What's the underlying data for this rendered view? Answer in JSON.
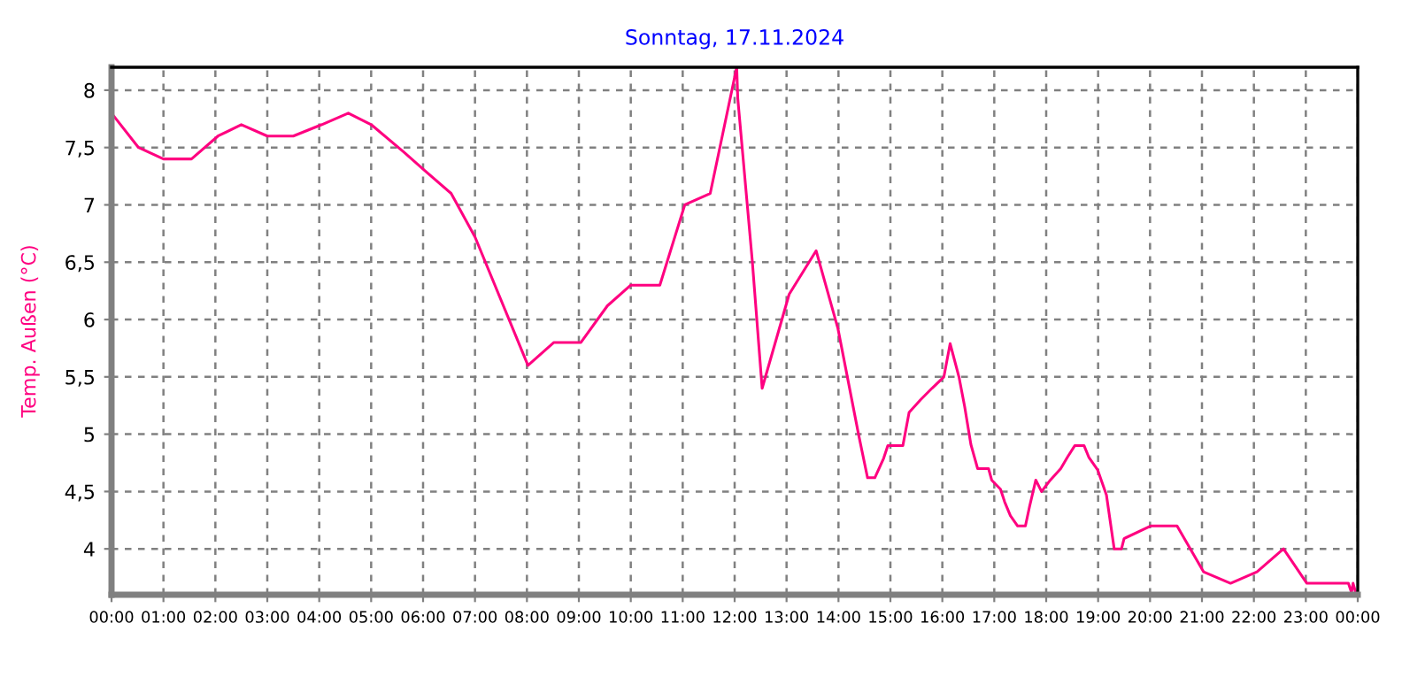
{
  "chart_data": {
    "type": "line",
    "title": "Sonntag, 17.11.2024",
    "ylabel": "Temp. Außen (°C)",
    "x": [
      0,
      0.52,
      1.0,
      1.54,
      2.05,
      2.5,
      3.0,
      3.5,
      4.05,
      4.56,
      5.0,
      5.63,
      6.03,
      6.54,
      7.0,
      8.02,
      8.52,
      9.04,
      9.55,
      10.0,
      10.56,
      11.04,
      11.53,
      12.04,
      12.06,
      12.34,
      12.53,
      13.05,
      13.57,
      13.99,
      14.39,
      14.56,
      14.7,
      14.87,
      14.95,
      15.24,
      15.36,
      15.58,
      15.8,
      16.03,
      16.15,
      16.32,
      16.43,
      16.55,
      16.68,
      16.89,
      16.95,
      17.12,
      17.2,
      17.31,
      17.45,
      17.6,
      17.68,
      17.8,
      17.91,
      18.08,
      18.28,
      18.41,
      18.55,
      18.73,
      18.82,
      18.99,
      19.16,
      19.31,
      19.45,
      19.5,
      20.01,
      20.52,
      21.03,
      21.55,
      22.06,
      22.57,
      23.02,
      23.82,
      23.88,
      23.91,
      23.96
    ],
    "series": [
      {
        "color": "#ff0080",
        "values": [
          7.8,
          7.5,
          7.4,
          7.4,
          7.6,
          7.7,
          7.6,
          7.6,
          7.7,
          7.8,
          7.7,
          7.46,
          7.3,
          7.1,
          6.72,
          5.6,
          5.8,
          5.8,
          6.12,
          6.3,
          6.3,
          7.0,
          7.1,
          8.2,
          7.93,
          6.51,
          5.4,
          6.22,
          6.6,
          5.92,
          4.99,
          4.62,
          4.62,
          4.79,
          4.9,
          4.9,
          5.19,
          5.3,
          5.4,
          5.5,
          5.79,
          5.5,
          5.24,
          4.91,
          4.7,
          4.7,
          4.6,
          4.52,
          4.41,
          4.29,
          4.2,
          4.2,
          4.37,
          4.6,
          4.5,
          4.6,
          4.7,
          4.8,
          4.9,
          4.9,
          4.8,
          4.69,
          4.47,
          4.0,
          4.0,
          4.09,
          4.2,
          4.2,
          3.8,
          3.7,
          3.8,
          4.0,
          3.7,
          3.7,
          3.62,
          3.7,
          3.62
        ]
      }
    ],
    "xlim": [
      0,
      24
    ],
    "ylim": [
      3.6,
      8.2
    ],
    "xticks": [
      {
        "value": 0,
        "label": "00:00"
      },
      {
        "value": 1,
        "label": "01:00"
      },
      {
        "value": 2,
        "label": "02:00"
      },
      {
        "value": 3,
        "label": "03:00"
      },
      {
        "value": 4,
        "label": "04:00"
      },
      {
        "value": 5,
        "label": "05:00"
      },
      {
        "value": 6,
        "label": "06:00"
      },
      {
        "value": 7,
        "label": "07:00"
      },
      {
        "value": 8,
        "label": "08:00"
      },
      {
        "value": 9,
        "label": "09:00"
      },
      {
        "value": 10,
        "label": "10:00"
      },
      {
        "value": 11,
        "label": "11:00"
      },
      {
        "value": 12,
        "label": "12:00"
      },
      {
        "value": 13,
        "label": "13:00"
      },
      {
        "value": 14,
        "label": "14:00"
      },
      {
        "value": 15,
        "label": "15:00"
      },
      {
        "value": 16,
        "label": "16:00"
      },
      {
        "value": 17,
        "label": "17:00"
      },
      {
        "value": 18,
        "label": "18:00"
      },
      {
        "value": 19,
        "label": "19:00"
      },
      {
        "value": 20,
        "label": "20:00"
      },
      {
        "value": 21,
        "label": "21:00"
      },
      {
        "value": 22,
        "label": "22:00"
      },
      {
        "value": 23,
        "label": "23:00"
      },
      {
        "value": 24,
        "label": "00:00"
      }
    ],
    "yticks": [
      4,
      {
        "value": 4.5,
        "label": "4,5"
      },
      5,
      {
        "value": 5.5,
        "label": "5,5"
      },
      6,
      {
        "value": 6.5,
        "label": "6,5"
      },
      7,
      {
        "value": 7.5,
        "label": "7,5"
      },
      8
    ],
    "grid": true,
    "marker": "none",
    "line_style": "solid"
  }
}
